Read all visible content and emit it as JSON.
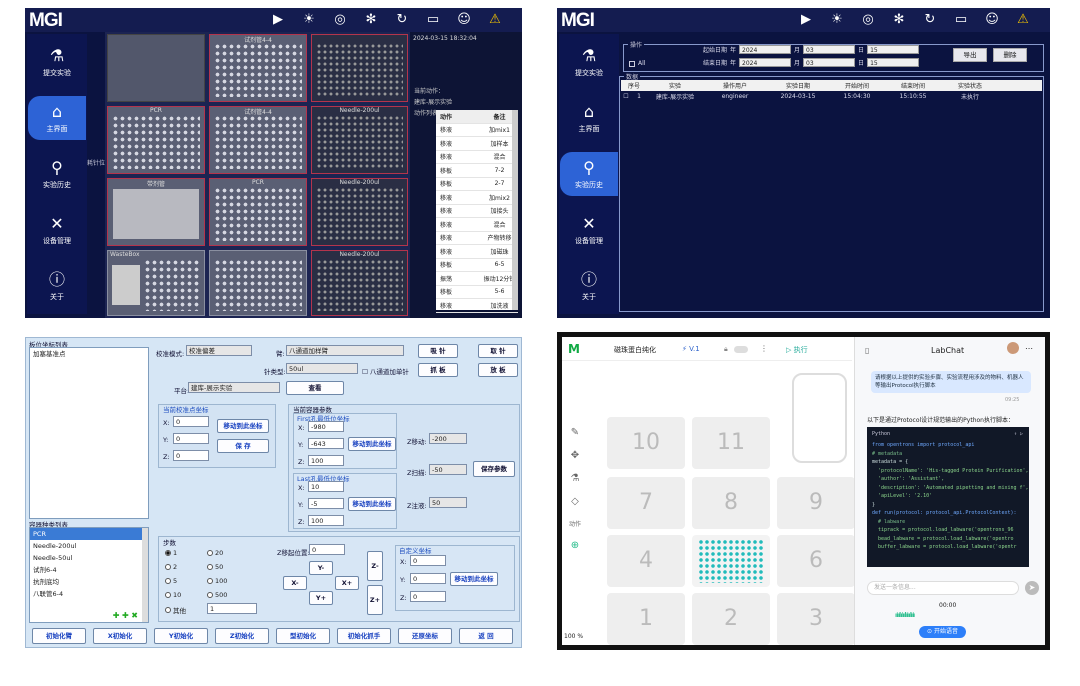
{
  "p1": {
    "logo": "MGI",
    "nav": [
      {
        "label": "提交实验",
        "icon": "flask-icon"
      },
      {
        "label": "主界面",
        "icon": "home-icon"
      },
      {
        "label": "实验历史",
        "icon": "history-icon"
      },
      {
        "label": "设备管理",
        "icon": "tools-icon"
      },
      {
        "label": "关于",
        "icon": "info-icon"
      }
    ],
    "side_label": "耗针位",
    "labware": [
      "PCR",
      "试剂管4-4",
      "Needle-200ul",
      "带剂管",
      "PCR",
      "Needle-200ul",
      "WasteBox",
      "8孔-4",
      "试剂槽1-2",
      "1",
      "Needle-200ul",
      "T50-44"
    ],
    "timestamp": "2024-03-15 18:32:04",
    "status_label": "当前动作：",
    "status_value": "建库-展示实验",
    "list_label": "动作列表",
    "table_headers": [
      "动作",
      "备注"
    ],
    "rows": [
      [
        "移液",
        "加mix1"
      ],
      [
        "移液",
        "加样本"
      ],
      [
        "移液",
        "混合"
      ],
      [
        "移板",
        "7-2"
      ],
      [
        "移板",
        "2-7"
      ],
      [
        "移液",
        "加mix2"
      ],
      [
        "移液",
        "加接头"
      ],
      [
        "移液",
        "混合"
      ],
      [
        "移液",
        "产物转移"
      ],
      [
        "移液",
        "加磁珠"
      ],
      [
        "移板",
        "6-5"
      ],
      [
        "振荡",
        "振动12分钟"
      ],
      [
        "移板",
        "5-6"
      ],
      [
        "移液",
        "加洗液"
      ]
    ]
  },
  "p2": {
    "logo": "MGI",
    "nav": [
      {
        "label": "提交实验",
        "icon": "flask-icon"
      },
      {
        "label": "主界面",
        "icon": "home-icon"
      },
      {
        "label": "实验历史",
        "icon": "history-icon"
      },
      {
        "label": "设备管理",
        "icon": "tools-icon"
      },
      {
        "label": "关于",
        "icon": "info-icon"
      }
    ],
    "op_title": "操作",
    "all_label": "All",
    "start_label": "起始日期",
    "end_label": "结束日期",
    "year": "年",
    "month": "月",
    "day": "日",
    "start": [
      "2024",
      "03",
      "15"
    ],
    "end": [
      "2024",
      "03",
      "15"
    ],
    "export_btn": "导出",
    "delete_btn": "删除",
    "data_title": "数据",
    "headers": [
      "序号",
      "实验",
      "操作用户",
      "实验日期",
      "开始时间",
      "结束时间",
      "实验状态"
    ],
    "rows": [
      [
        "1",
        "建库-展示实验",
        "engineer",
        "2024-03-15",
        "15:04:30",
        "15:10:55",
        "未执行"
      ]
    ]
  },
  "p3": {
    "list_title": "板位坐标列表",
    "list_items": [
      "加塞基准点"
    ],
    "types_title": "容器种类列表",
    "types": [
      "PCR",
      "Needle-200ul",
      "Needle-50ul",
      "试剂6-4",
      "抗剂底均",
      "八联管6-4"
    ],
    "mode_label": "校准模式:",
    "mode_value": "校准偏差",
    "arm_label": "臂:",
    "arm_value": "八通道加样臂",
    "needle_label": "针类型:",
    "needle_value": "50ul",
    "chk_label": "八通道加单针",
    "plat_label": "平台:",
    "plat_value": "建库-展示实验",
    "view_btn": "查看",
    "btns_tr": [
      "吸 针",
      "取 针",
      "抓 板",
      "放 板"
    ],
    "cur_cal_title": "当前校准点坐标",
    "cx": "0",
    "cy": "0",
    "cz": "0",
    "move_btn": "移动到此坐标",
    "save_btn": "保 存",
    "params_title": "当前容器参数",
    "first_title": "First孔最低位坐标",
    "fx": "-980",
    "fy": "-643",
    "fz": "100",
    "last_title": "Last孔最低位坐标",
    "lx": "10",
    "ly": "-5",
    "lz": "100",
    "zmove_label": "Z移动:",
    "zmove": "-200",
    "zsuck_label": "Z扫描:",
    "zsuck": "-50",
    "zinj_label": "Z注液:",
    "zinj": "50",
    "save_params_btn": "保存参数",
    "step_title": "步数",
    "steps": [
      "1",
      "2",
      "5",
      "10",
      "其他",
      "20",
      "50",
      "100",
      "500"
    ],
    "step_other": "1",
    "zstart_label": "Z移起位置:",
    "zstart": "0",
    "jog": [
      "Y-",
      "X-",
      "X+",
      "Y+",
      "Z-",
      "Z+"
    ],
    "custom_title": "自定义坐标",
    "ux": "0",
    "uy": "0",
    "uz": "0",
    "bottom_btns": [
      "初始化臂",
      "X初始化",
      "Y初始化",
      "Z初始化",
      "型初始化",
      "初始化抓手",
      "还原坐标",
      "返 回"
    ],
    "axis_labels": [
      "X:",
      "Y:",
      "Z:"
    ]
  },
  "p4": {
    "title": "磁珠蛋白纯化",
    "version": "V.1",
    "run": "执行",
    "slots": [
      "10",
      "11",
      "7",
      "8",
      "9",
      "4",
      "5",
      "6",
      "1",
      "2",
      "3"
    ],
    "zoom": "100 %",
    "tool_label": "动作",
    "chat_title": "LabChat",
    "user_msg": "请根据以上提供的实验步骤、实验流程用涉及的物料、机器人等输出Protocol执行脚本",
    "msg_time": "09:25",
    "reply": "以下是通过Protocol设计规范输出的Python执行脚本：",
    "code_lang": "Python",
    "code": [
      "from opentrons import protocol_api",
      "# metadata",
      "metadata = {",
      "  'protocolName': 'His-tagged Protein Purification',",
      "  'author': 'Assistant',",
      "  'description': 'Automated pipetting and mixing f',",
      "  'apiLevel': '2.10'",
      "}",
      "def run(protocol: protocol_api.ProtocolContext):",
      "  # labware",
      "  tiprack = protocol.load_labware('opentrons_96",
      "  bead_labware = protocol.load_labware('opentro",
      "  buffer_labware = protocol.load_labware('opentr"
    ],
    "input_ph": "发送一条信息...",
    "rec_time": "00:00",
    "voice_btn": "开始语音"
  }
}
